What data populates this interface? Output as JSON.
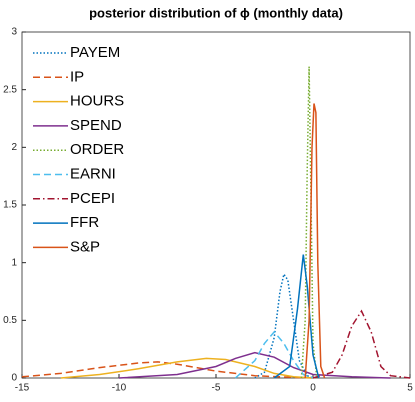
{
  "chart_data": {
    "type": "line",
    "title": "posterior distribution of ϕ (monthly data)",
    "xlim": [
      -15,
      5
    ],
    "xticks": [
      -15,
      -10,
      -5,
      0,
      5
    ],
    "ylim": [
      0,
      3
    ],
    "yticks": [
      0,
      0.5,
      1,
      1.5,
      2,
      2.5,
      3
    ],
    "grid": false,
    "legend": "upper-left",
    "series": [
      {
        "name": "PAYEM",
        "color": "#0072bd",
        "style": "dotted",
        "x": [
          -3,
          -2.5,
          -2,
          -1.7,
          -1.5,
          -1.3,
          -1,
          -0.7,
          -0.3,
          0
        ],
        "values": [
          0,
          0.05,
          0.35,
          0.75,
          0.9,
          0.85,
          0.5,
          0.15,
          0.02,
          0
        ]
      },
      {
        "name": "IP",
        "color": "#d95319",
        "style": "dashed",
        "x": [
          -15,
          -13,
          -11,
          -9,
          -8,
          -7,
          -5,
          -3,
          -1,
          0
        ],
        "values": [
          0.01,
          0.04,
          0.09,
          0.13,
          0.14,
          0.12,
          0.06,
          0.02,
          0.005,
          0
        ]
      },
      {
        "name": "HOURS",
        "color": "#edb120",
        "style": "solid",
        "x": [
          -13,
          -11,
          -9,
          -7,
          -5.5,
          -4.5,
          -3,
          -2,
          -1,
          0
        ],
        "values": [
          0,
          0.03,
          0.08,
          0.14,
          0.17,
          0.16,
          0.1,
          0.04,
          0.01,
          0
        ]
      },
      {
        "name": "SPEND",
        "color": "#7e2f8e",
        "style": "solid",
        "x": [
          -10,
          -7,
          -5,
          -4,
          -3,
          -2,
          -1,
          0,
          2,
          4
        ],
        "values": [
          0,
          0.03,
          0.1,
          0.17,
          0.22,
          0.18,
          0.09,
          0.03,
          0.01,
          0
        ]
      },
      {
        "name": "ORDER",
        "color": "#77ac30",
        "style": "dotted",
        "x": [
          -0.6,
          -0.4,
          -0.3,
          -0.2,
          -0.1,
          0,
          0.2
        ],
        "values": [
          0,
          0.5,
          1.8,
          2.7,
          1.5,
          0.3,
          0
        ]
      },
      {
        "name": "EARNI",
        "color": "#4dbeee",
        "style": "dashed",
        "x": [
          -4,
          -3,
          -2.5,
          -2,
          -1.5,
          -1,
          -0.5,
          0
        ],
        "values": [
          0,
          0.15,
          0.3,
          0.4,
          0.3,
          0.15,
          0.03,
          0
        ]
      },
      {
        "name": "PCEPI",
        "color": "#a2142f",
        "style": "dashdot",
        "x": [
          0,
          1,
          1.5,
          2,
          2.5,
          3,
          3.5,
          4,
          5
        ],
        "values": [
          0,
          0.05,
          0.2,
          0.45,
          0.58,
          0.4,
          0.1,
          0.02,
          0
        ]
      },
      {
        "name": "FFR",
        "color": "#0072bd",
        "style": "solid",
        "x": [
          -2,
          -1.2,
          -0.8,
          -0.5,
          -0.3,
          0,
          0.3
        ],
        "values": [
          0,
          0.1,
          0.6,
          1.07,
          0.8,
          0.2,
          0
        ]
      },
      {
        "name": "S&P",
        "color": "#d95319",
        "style": "solid",
        "x": [
          -0.4,
          -0.2,
          -0.05,
          0.05,
          0.15,
          0.25,
          0.4,
          0.6
        ],
        "values": [
          0,
          0.5,
          2.0,
          2.38,
          2.3,
          1.0,
          0.1,
          0
        ]
      }
    ]
  }
}
